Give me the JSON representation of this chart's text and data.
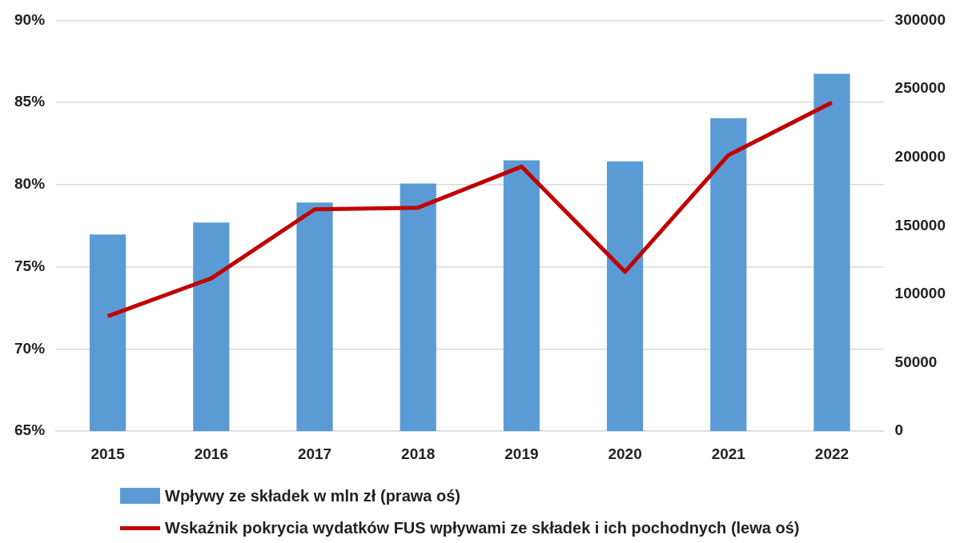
{
  "chart_data": {
    "type": "bar",
    "categories": [
      "2015",
      "2016",
      "2017",
      "2018",
      "2019",
      "2020",
      "2021",
      "2022"
    ],
    "series": [
      {
        "name": "Wpływy ze składek w mln zł (prawa oś)",
        "axis": "y2",
        "color": "#5b9bd5",
        "values": [
          143600,
          152300,
          166900,
          180800,
          197700,
          197100,
          228500,
          261000
        ]
      },
      {
        "name": "Wskaźnik pokrycia wydatków FUS wpływami ze składek i ich pochodnych (lewa oś)",
        "type": "line",
        "color": "#c00000",
        "values": [
          72.0,
          74.3,
          78.5,
          78.6,
          81.1,
          74.7,
          81.8,
          85.0
        ]
      }
    ],
    "ylim": [
      65,
      90
    ],
    "yticks": [
      {
        "value": 65,
        "label": "65%"
      },
      {
        "value": 70,
        "label": "70%"
      },
      {
        "value": 75,
        "label": "75%"
      },
      {
        "value": 80,
        "label": "80%"
      },
      {
        "value": 85,
        "label": "85%"
      },
      {
        "value": 90,
        "label": "90%"
      }
    ],
    "y2lim": [
      0,
      300000
    ],
    "y2ticks": [
      0,
      50000,
      100000,
      150000,
      200000,
      250000,
      300000
    ],
    "grid": "y",
    "legend": "bottom",
    "marker": "none",
    "line_style": "solid"
  }
}
